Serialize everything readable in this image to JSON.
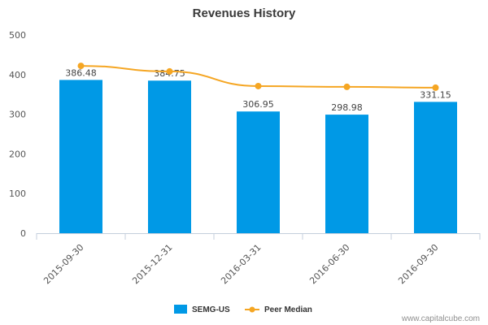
{
  "chart_data": {
    "type": "bar",
    "title": "Revenues History",
    "categories": [
      "2015-09-30",
      "2015-12-31",
      "2016-03-31",
      "2016-06-30",
      "2016-09-30"
    ],
    "series": [
      {
        "name": "SEMG-US",
        "kind": "bar",
        "color": "#0099e6",
        "values": [
          386.48,
          384.75,
          306.95,
          298.98,
          331.15
        ],
        "labels": [
          "386.48",
          "384.75",
          "306.95",
          "298.98",
          "331.15"
        ]
      },
      {
        "name": "Peer Median",
        "kind": "line",
        "color": "#f5a623",
        "values": [
          422,
          408,
          371,
          369,
          367
        ]
      }
    ],
    "yticks": [
      "0",
      "100",
      "200",
      "300",
      "400",
      "500"
    ],
    "ylim": [
      0,
      500
    ],
    "grid": false,
    "legend": "bottom-center"
  },
  "credit": "www.capitalcube.com"
}
